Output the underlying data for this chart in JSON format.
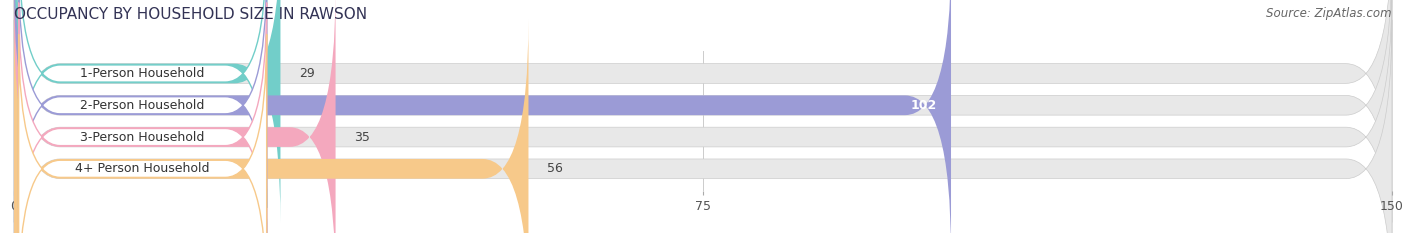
{
  "title": "OCCUPANCY BY HOUSEHOLD SIZE IN RAWSON",
  "source": "Source: ZipAtlas.com",
  "categories": [
    "1-Person Household",
    "2-Person Household",
    "3-Person Household",
    "4+ Person Household"
  ],
  "values": [
    29,
    102,
    35,
    56
  ],
  "bar_colors": [
    "#72cec9",
    "#9b9bd6",
    "#f4a8be",
    "#f7c98a"
  ],
  "label_box_color": "#ffffff",
  "label_box_edge_colors": [
    "#72cec9",
    "#9b9bd6",
    "#f4a8be",
    "#f7c98a"
  ],
  "xlim": [
    0,
    150
  ],
  "xticks": [
    0,
    75,
    150
  ],
  "background_color": "#ffffff",
  "bar_bg_color": "#e8e8e8",
  "title_fontsize": 11,
  "source_fontsize": 8.5,
  "label_fontsize": 9,
  "value_fontsize": 9,
  "bar_height": 0.62,
  "figsize": [
    14.06,
    2.33
  ],
  "dpi": 100
}
